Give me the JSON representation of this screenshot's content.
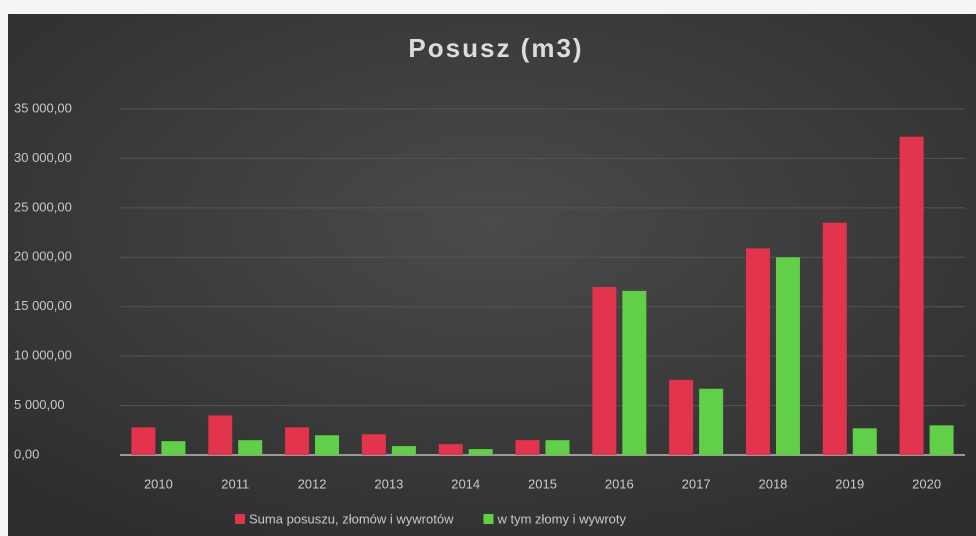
{
  "chart_data": {
    "type": "bar",
    "title": "Posusz (m3)",
    "categories": [
      "2010",
      "2011",
      "2012",
      "2013",
      "2014",
      "2015",
      "2016",
      "2017",
      "2018",
      "2019",
      "2020"
    ],
    "series": [
      {
        "name": "Suma posuszu, złomów i wywrotów",
        "color": "#e2344c",
        "values": [
          2800,
          4000,
          2800,
          2100,
          1100,
          1500,
          17000,
          7600,
          20900,
          23500,
          32200
        ]
      },
      {
        "name": "w tym złomy i wywroty",
        "color": "#62cf48",
        "values": [
          1400,
          1500,
          2000,
          900,
          600,
          1500,
          16600,
          6700,
          20000,
          2700,
          3000
        ]
      }
    ],
    "ylim": [
      0,
      35000
    ],
    "yticks": [
      {
        "value": 0,
        "label": "0,00"
      },
      {
        "value": 5000,
        "label": "5 000,00"
      },
      {
        "value": 10000,
        "label": "10 000,00"
      },
      {
        "value": 15000,
        "label": "15 000,00"
      },
      {
        "value": 20000,
        "label": "20 000,00"
      },
      {
        "value": 25000,
        "label": "25 000,00"
      },
      {
        "value": 30000,
        "label": "30 000,00"
      },
      {
        "value": 35000,
        "label": "35 000,00"
      }
    ],
    "grid": true,
    "legend": "bottom"
  }
}
